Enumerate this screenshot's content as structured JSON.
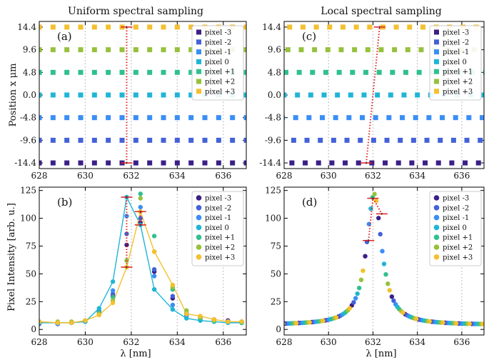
{
  "figure": {
    "ylabel_top": "Position x  μm",
    "ylabel_bottom": "Pixel Intensity [arb. u.]"
  },
  "legend": [
    "pixel -3",
    "pixel -2",
    "pixel -1",
    "pixel 0",
    "pixel +1",
    "pixel +2",
    "pixel +3"
  ],
  "colors": [
    "#3b1f87",
    "#4361d8",
    "#3a8ef5",
    "#1fb5d6",
    "#30c08f",
    "#96c13d",
    "#f4c02e"
  ],
  "chart_data": [
    {
      "id": "a",
      "type": "scatter",
      "panel_label": "(a)",
      "title": "Uniform spectral sampling",
      "xlabel": "",
      "ylabel": "Position x  μm",
      "xlim": [
        628,
        637
      ],
      "ylim": [
        -15.6,
        15.6
      ],
      "xticks": [
        "628",
        "630",
        "632",
        "634",
        "636"
      ],
      "yticks": [
        "-14.4",
        "-9.6",
        "-4.8",
        "0.0",
        "4.8",
        "9.6",
        "14.4"
      ],
      "sampling_x": [
        628.0,
        628.6,
        629.2,
        629.8,
        630.4,
        631.0,
        631.6,
        632.2,
        632.8,
        633.4,
        634.0,
        634.6,
        635.2,
        635.8,
        636.4,
        637.0
      ],
      "series_positions": [
        -14.4,
        -9.6,
        -4.8,
        0.0,
        4.8,
        9.6,
        14.4
      ],
      "central_line": [
        {
          "x": 631.8,
          "y": -14.4
        },
        {
          "x": 631.8,
          "y": 14.4
        }
      ],
      "legend_position": "top-right"
    },
    {
      "id": "c",
      "type": "scatter",
      "panel_label": "(c)",
      "title": "Local spectral sampling",
      "xlabel": "",
      "ylabel": "",
      "xlim": [
        628,
        637
      ],
      "ylim": [
        -15.6,
        15.6
      ],
      "xticks": [
        "628",
        "630",
        "632",
        "634",
        "636"
      ],
      "yticks": [
        "-14.4",
        "-9.6",
        "-4.8",
        "0.0",
        "4.8",
        "9.6",
        "14.4"
      ],
      "sampling_x": [
        628.0,
        628.6,
        629.2,
        629.8,
        630.4,
        631.0,
        631.6,
        632.2,
        632.8,
        633.4,
        634.0,
        634.6,
        635.2,
        635.8,
        636.4,
        637.0
      ],
      "series_positions": [
        -14.4,
        -9.6,
        -4.8,
        0.0,
        4.8,
        9.6,
        14.4
      ],
      "series_offsets": [
        -0.25,
        -0.17,
        -0.08,
        0.0,
        0.08,
        0.17,
        0.25
      ],
      "central_line": [
        {
          "x": 631.7,
          "y": -14.4
        },
        {
          "x": 632.3,
          "y": 14.4
        }
      ],
      "legend_position": "top-right"
    },
    {
      "id": "b",
      "type": "line",
      "panel_label": "(b)",
      "xlabel": "λ [nm]",
      "ylabel": "Pixel Intensity [arb. u.]",
      "xlim": [
        628,
        637
      ],
      "ylim": [
        -5,
        128
      ],
      "xticks": [
        "628",
        "630",
        "632",
        "634",
        "636"
      ],
      "yticks": [
        "0",
        "25",
        "50",
        "75",
        "100",
        "125"
      ],
      "series": [
        {
          "name": "pixel -3",
          "x": [
            628,
            628.8,
            629.4,
            630,
            630.6,
            631.2,
            631.8,
            632.4,
            633,
            633.8,
            634.4,
            635,
            635.6,
            636.2,
            636.8
          ],
          "y": [
            5,
            5,
            6,
            8,
            16,
            30,
            76,
            96,
            52,
            28,
            14,
            11,
            9,
            8,
            7
          ]
        },
        {
          "name": "pixel -2",
          "x": [
            628,
            628.8,
            629.4,
            630,
            630.6,
            631.2,
            631.8,
            632.4,
            633,
            633.8,
            634.4,
            635,
            635.6,
            636.2,
            636.8
          ],
          "y": [
            5,
            5,
            6,
            8,
            16,
            32,
            86,
            100,
            54,
            30,
            13,
            10,
            8,
            7,
            6
          ]
        },
        {
          "name": "pixel -1",
          "x": [
            628,
            628.8,
            629.4,
            630,
            630.6,
            631.2,
            631.8,
            632.4,
            633,
            633.8,
            634.4,
            635,
            635.6,
            636.2,
            636.8
          ],
          "y": [
            5,
            5,
            6,
            7,
            17,
            35,
            102,
            110,
            48,
            22,
            12,
            9,
            8,
            7,
            6
          ]
        },
        {
          "name": "pixel 0",
          "x": [
            628,
            628.8,
            629.4,
            630,
            630.6,
            631.2,
            631.8,
            632.4,
            633,
            633.8,
            634.4,
            635,
            635.6,
            636.2,
            636.8
          ],
          "y": [
            6,
            6,
            6,
            7,
            19,
            43,
            119,
            94,
            36,
            18,
            10,
            8,
            7,
            6,
            6
          ]
        },
        {
          "name": "pixel +1",
          "x": [
            628,
            628.8,
            629.4,
            630,
            630.6,
            631.2,
            631.8,
            632.4,
            633,
            633.8,
            634.4,
            635,
            635.6,
            636.2,
            636.8
          ],
          "y": [
            7,
            6,
            6,
            8,
            15,
            29,
            56,
            122,
            84,
            36,
            15,
            10,
            8,
            7,
            6
          ]
        },
        {
          "name": "pixel +2",
          "x": [
            628,
            628.8,
            629.4,
            630,
            630.6,
            631.2,
            631.8,
            632.4,
            633,
            633.8,
            634.4,
            635,
            635.6,
            636.2,
            636.8
          ],
          "y": [
            7,
            7,
            7,
            8,
            14,
            26,
            62,
            118,
            70,
            38,
            17,
            11,
            8,
            7,
            7
          ]
        },
        {
          "name": "pixel +3",
          "x": [
            628,
            628.8,
            629.4,
            630,
            630.6,
            631.2,
            631.8,
            632.4,
            633,
            633.8,
            634.4,
            635,
            635.6,
            636.2,
            636.8
          ],
          "y": [
            7,
            6,
            6,
            8,
            13,
            24,
            56,
            106,
            70,
            40,
            14,
            12,
            9,
            7,
            7
          ]
        }
      ],
      "highlight_lines": [
        {
          "x": 631.8,
          "y": [
            56,
            119
          ]
        },
        {
          "x": 632.4,
          "y": [
            94,
            106
          ]
        }
      ],
      "legend_position": "top-right"
    },
    {
      "id": "d",
      "type": "scatter",
      "panel_label": "(d)",
      "xlabel": "λ [nm]",
      "ylabel": "",
      "xlim": [
        628,
        637
      ],
      "ylim": [
        -5,
        128
      ],
      "xticks": [
        "628",
        "630",
        "632",
        "634",
        "636"
      ],
      "yticks": [
        "0",
        "25",
        "50",
        "75",
        "100",
        "125"
      ],
      "lorentz": {
        "center": 632.05,
        "hwhm": 0.42,
        "amplitude": 118,
        "baseline": 4
      },
      "sample_step": 0.6,
      "series_offsets": [
        -0.25,
        -0.17,
        -0.08,
        0.0,
        0.08,
        0.17,
        0.25
      ],
      "highlight_points": [
        {
          "x": 631.8,
          "y": 80
        },
        {
          "x": 632.0,
          "y": 118
        },
        {
          "x": 632.4,
          "y": 104
        }
      ],
      "legend_position": "top-right"
    }
  ]
}
